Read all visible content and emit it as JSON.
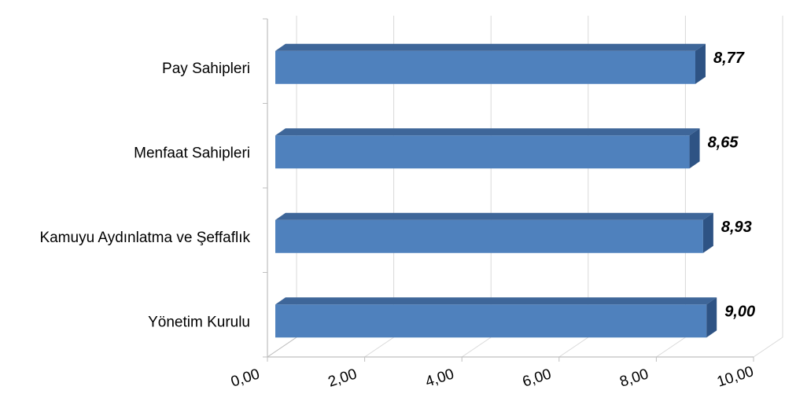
{
  "chart_data": {
    "type": "bar",
    "orientation": "horizontal",
    "three_d": true,
    "categories": [
      "Pay Sahipleri",
      "Menfaat Sahipleri",
      "Kamuyu Aydınlatma ve Şeffaflık",
      "Yönetim Kurulu"
    ],
    "values": [
      8.77,
      8.65,
      8.93,
      9.0
    ],
    "value_labels": [
      "8,77",
      "8,65",
      "8,93",
      "9,00"
    ],
    "xlim": [
      0,
      10
    ],
    "x_ticks": [
      "0,00",
      "2,00",
      "4,00",
      "6,00",
      "8,00",
      "10,00"
    ],
    "grid": true,
    "colors": {
      "bar_front": "#4F81BD",
      "bar_top": "#3E6699",
      "bar_side": "#2E5384",
      "grid": "#D9D9D9",
      "axis": "#BFBFBF"
    }
  }
}
